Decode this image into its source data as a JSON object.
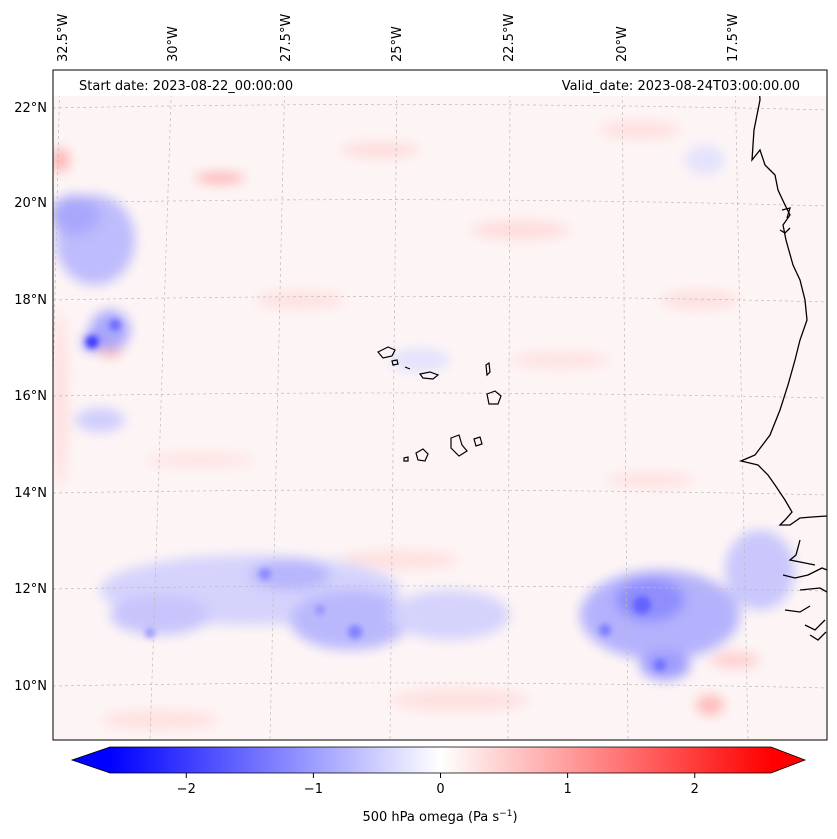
{
  "header": {
    "start_date": "Start date: 2023-08-22_00:00:00",
    "valid_date": "Valid_date: 2023-08-24T03:00:00.00"
  },
  "longitude_labels": [
    "32.5°W",
    "30°W",
    "27.5°W",
    "25°W",
    "22.5°W",
    "20°W",
    "17.5°W"
  ],
  "latitude_labels": [
    "22°N",
    "20°N",
    "18°N",
    "16°N",
    "14°N",
    "12°N",
    "10°N"
  ],
  "colorbar": {
    "label": "500 hPa omega (Pa s",
    "label_sup": "−1",
    "label_close": ")",
    "ticks": [
      "−2",
      "−1",
      "0",
      "1",
      "2"
    ],
    "range": [
      -2.6,
      2.6
    ],
    "tick_values": [
      -2,
      -1,
      0,
      1,
      2
    ],
    "low_color": "#0000ff",
    "high_color": "#ff0000"
  },
  "colors": {
    "coast": "#000000",
    "grid": "#bbbbbb",
    "ocean_base": "#fdf6f6"
  }
}
